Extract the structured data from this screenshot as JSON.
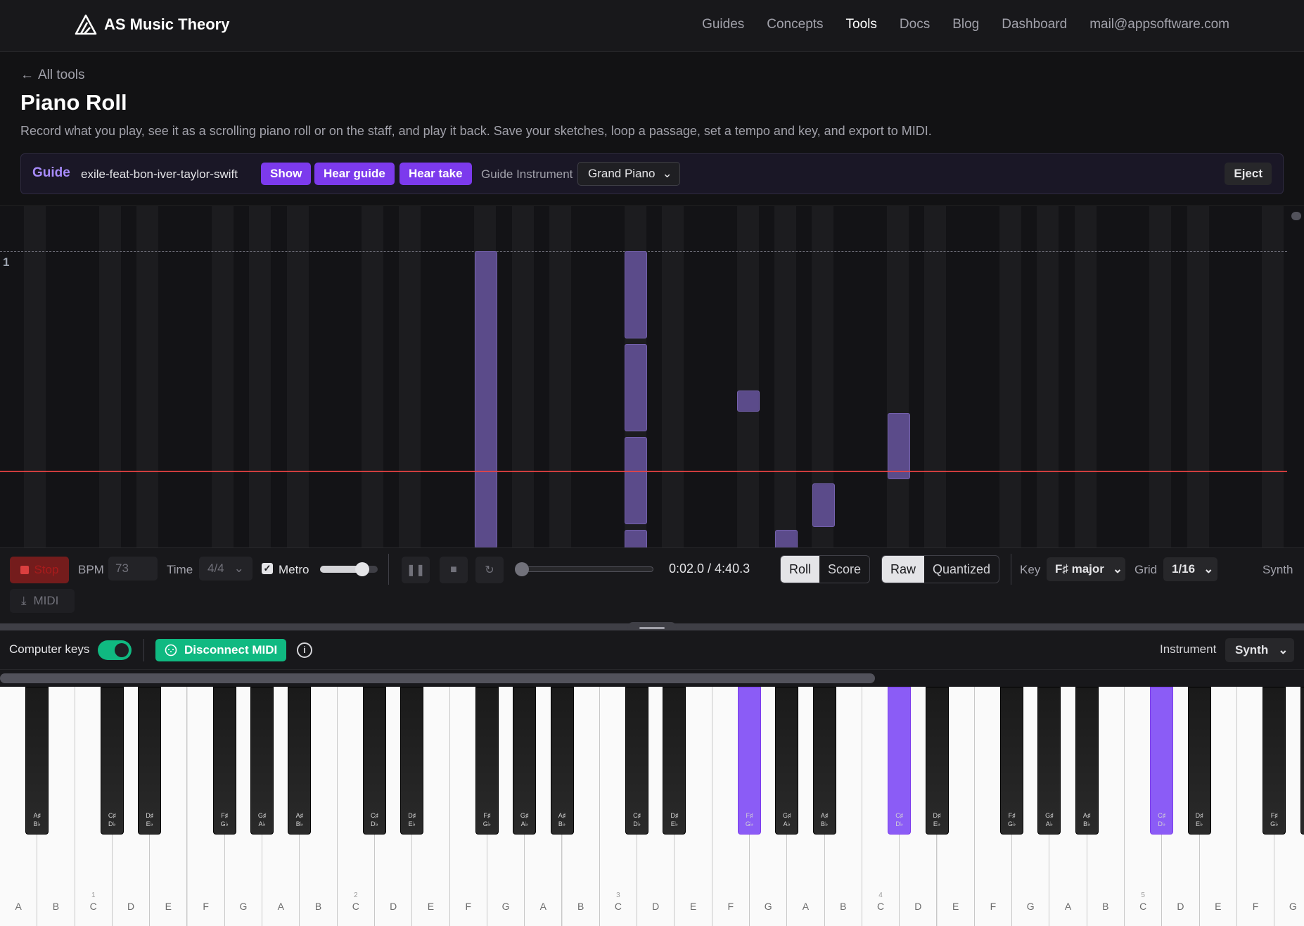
{
  "header": {
    "brand": "AS Music Theory",
    "nav": [
      "Guides",
      "Concepts",
      "Tools",
      "Docs",
      "Blog",
      "Dashboard",
      "mail@appsoftware.com"
    ],
    "active_nav": "Tools"
  },
  "page": {
    "back_link": "All tools",
    "title": "Piano Roll",
    "description": "Record what you play, see it as a scrolling piano roll or on the staff, and play it back. Save your sketches, loop a passage, set a tempo and key, and export to MIDI."
  },
  "guide": {
    "label": "Guide",
    "name": "exile-feat-bon-iver-taylor-swift",
    "show_label": "Show",
    "hear_guide_label": "Hear guide",
    "hear_take_label": "Hear take",
    "instrument_label": "Guide Instrument",
    "instrument_value": "Grand Piano",
    "eject_label": "Eject"
  },
  "roll": {
    "bar_number": "1"
  },
  "transport": {
    "stop_label": "Stop",
    "bpm_label": "BPM",
    "bpm_value": "73",
    "time_label": "Time",
    "time_value": "4/4",
    "metro_label": "Metro",
    "metro_checked": true,
    "time_display": "0:02.0 / 4:40.3",
    "view_roll": "Roll",
    "view_score": "Score",
    "mode_raw": "Raw",
    "mode_quantized": "Quantized",
    "key_label": "Key",
    "key_value": "F♯ major",
    "grid_label": "Grid",
    "grid_value": "1/16",
    "synth_label": "Synth",
    "midi_label": "MIDI"
  },
  "keyboard_controls": {
    "computer_keys_label": "Computer keys",
    "disconnect_midi_label": "Disconnect MIDI",
    "instrument_label": "Instrument",
    "instrument_value": "Synth"
  },
  "keyboard": {
    "white_keys": [
      "A",
      "B",
      "C",
      "D",
      "E",
      "F",
      "G",
      "A",
      "B",
      "C",
      "D",
      "E",
      "F",
      "G",
      "A",
      "B",
      "C",
      "D",
      "E",
      "F",
      "G",
      "A",
      "B",
      "C",
      "D",
      "E",
      "F",
      "G",
      "A",
      "B",
      "C",
      "D",
      "E",
      "F",
      "G"
    ],
    "octave_markers": {
      "2": "1",
      "9": "2",
      "16": "3",
      "23": "4",
      "30": "5"
    },
    "black_key_labels": {
      "A#": [
        "A♯",
        "B♭"
      ],
      "C#": [
        "C♯",
        "D♭"
      ],
      "D#": [
        "D♯",
        "E♭"
      ],
      "F#": [
        "F♯",
        "G♭"
      ],
      "G#": [
        "G♯",
        "A♭"
      ]
    },
    "lit_keys": [
      "F#3",
      "C#4",
      "C#5"
    ]
  },
  "colors": {
    "accent": "#7c3aed",
    "note": "#5b4b8a",
    "playhead": "#ef4444",
    "midi_green": "#10b981"
  }
}
